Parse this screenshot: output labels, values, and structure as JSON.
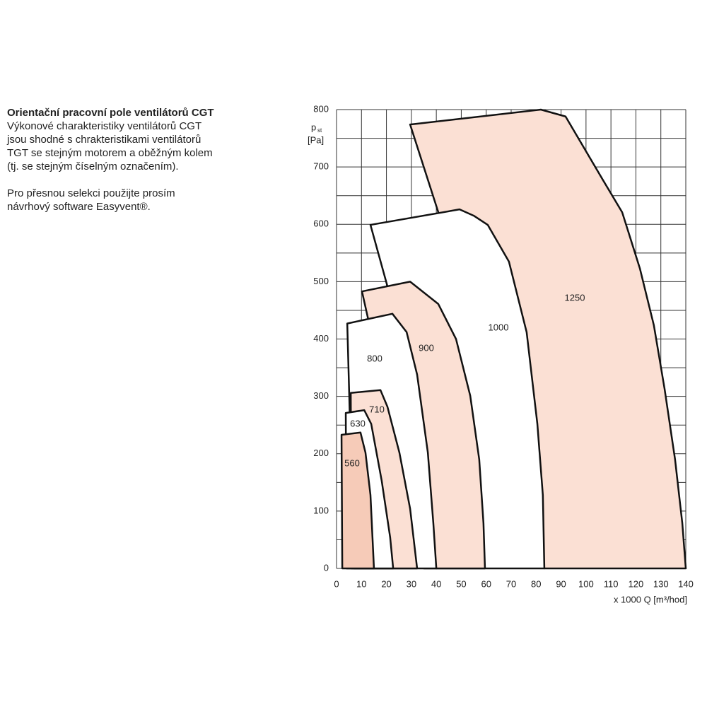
{
  "text": {
    "title": "Orientační pracovní pole ventilátorů CGT",
    "paragraphs": [
      [
        "Výkonové charakteristiky ventilátorů CGT",
        "jsou shodné s chrakteristikami ventilátorů",
        "TGT se stejným motorem a oběžným kolem",
        "(tj. se stejným číselným označením)."
      ],
      [
        "Pro přesnou selekci použijte prosím",
        "návrhový software Easyvent®."
      ]
    ]
  },
  "chart_data": {
    "type": "area",
    "ylabel": "p",
    "ylabel_sub": "st",
    "ylabel_unit": "[Pa]",
    "xlabel": "x 1000 Q [m³/hod]",
    "xlim": [
      0,
      140
    ],
    "xticks": [
      0,
      10,
      20,
      30,
      40,
      50,
      60,
      70,
      80,
      90,
      100,
      110,
      120,
      130,
      140
    ],
    "ylim": [
      0,
      800
    ],
    "yticks": [
      0,
      100,
      200,
      300,
      400,
      500,
      600,
      700,
      800
    ],
    "yminorticks": [
      50,
      150,
      250,
      350,
      450,
      550,
      650,
      750
    ],
    "grid": true,
    "series": [
      {
        "name": "1250",
        "color": "#fbe0d4",
        "x": [
          40.8,
          29.5,
          81.9,
          91.8,
          106,
          114.5,
          121.6,
          127.2,
          131.5,
          135.7,
          138.6,
          140,
          83.3
        ],
        "values": [
          621,
          774,
          800,
          788,
          683,
          621,
          523,
          424,
          313,
          190,
          79,
          0,
          0
        ]
      },
      {
        "name": "1000",
        "color": "#ffffff",
        "x": [
          20.4,
          13.6,
          49.3,
          55,
          60.6,
          69.1,
          76.2,
          80.5,
          82.7,
          83.3,
          40
        ],
        "values": [
          492,
          599,
          626,
          615,
          599,
          535,
          412,
          252,
          128,
          0,
          0
        ]
      },
      {
        "name": "900",
        "color": "#fbe0d4",
        "x": [
          10.2,
          29.5,
          40.8,
          47.9,
          53.6,
          57.2,
          58.9,
          59.5,
          35
        ],
        "values": [
          483,
          500,
          461,
          400,
          301,
          190,
          79,
          0,
          0
        ]
      },
      {
        "name": "800",
        "color": "#ffffff",
        "x": [
          4.3,
          22.4,
          28.1,
          32.3,
          36.6,
          38.8,
          40,
          7
        ],
        "values": [
          427,
          444,
          412,
          338,
          202,
          79,
          0,
          0
        ]
      },
      {
        "name": "710",
        "color": "#fbe0d4",
        "x": [
          5.7,
          17.6,
          20.4,
          25.2,
          29.5,
          32.3,
          6
        ],
        "values": [
          306,
          311,
          282,
          202,
          104,
          0,
          0
        ]
      },
      {
        "name": "630",
        "color": "#ffffff",
        "x": [
          3.7,
          11.1,
          13.9,
          18.1,
          21.5,
          22.7,
          4
        ],
        "values": [
          271,
          276,
          252,
          153,
          54,
          0,
          0
        ]
      },
      {
        "name": "560",
        "color": "#f6cbb8",
        "x": [
          2,
          9.6,
          11.6,
          13.6,
          15,
          2.3
        ],
        "values": [
          233,
          237,
          202,
          128,
          0,
          0
        ]
      }
    ]
  }
}
